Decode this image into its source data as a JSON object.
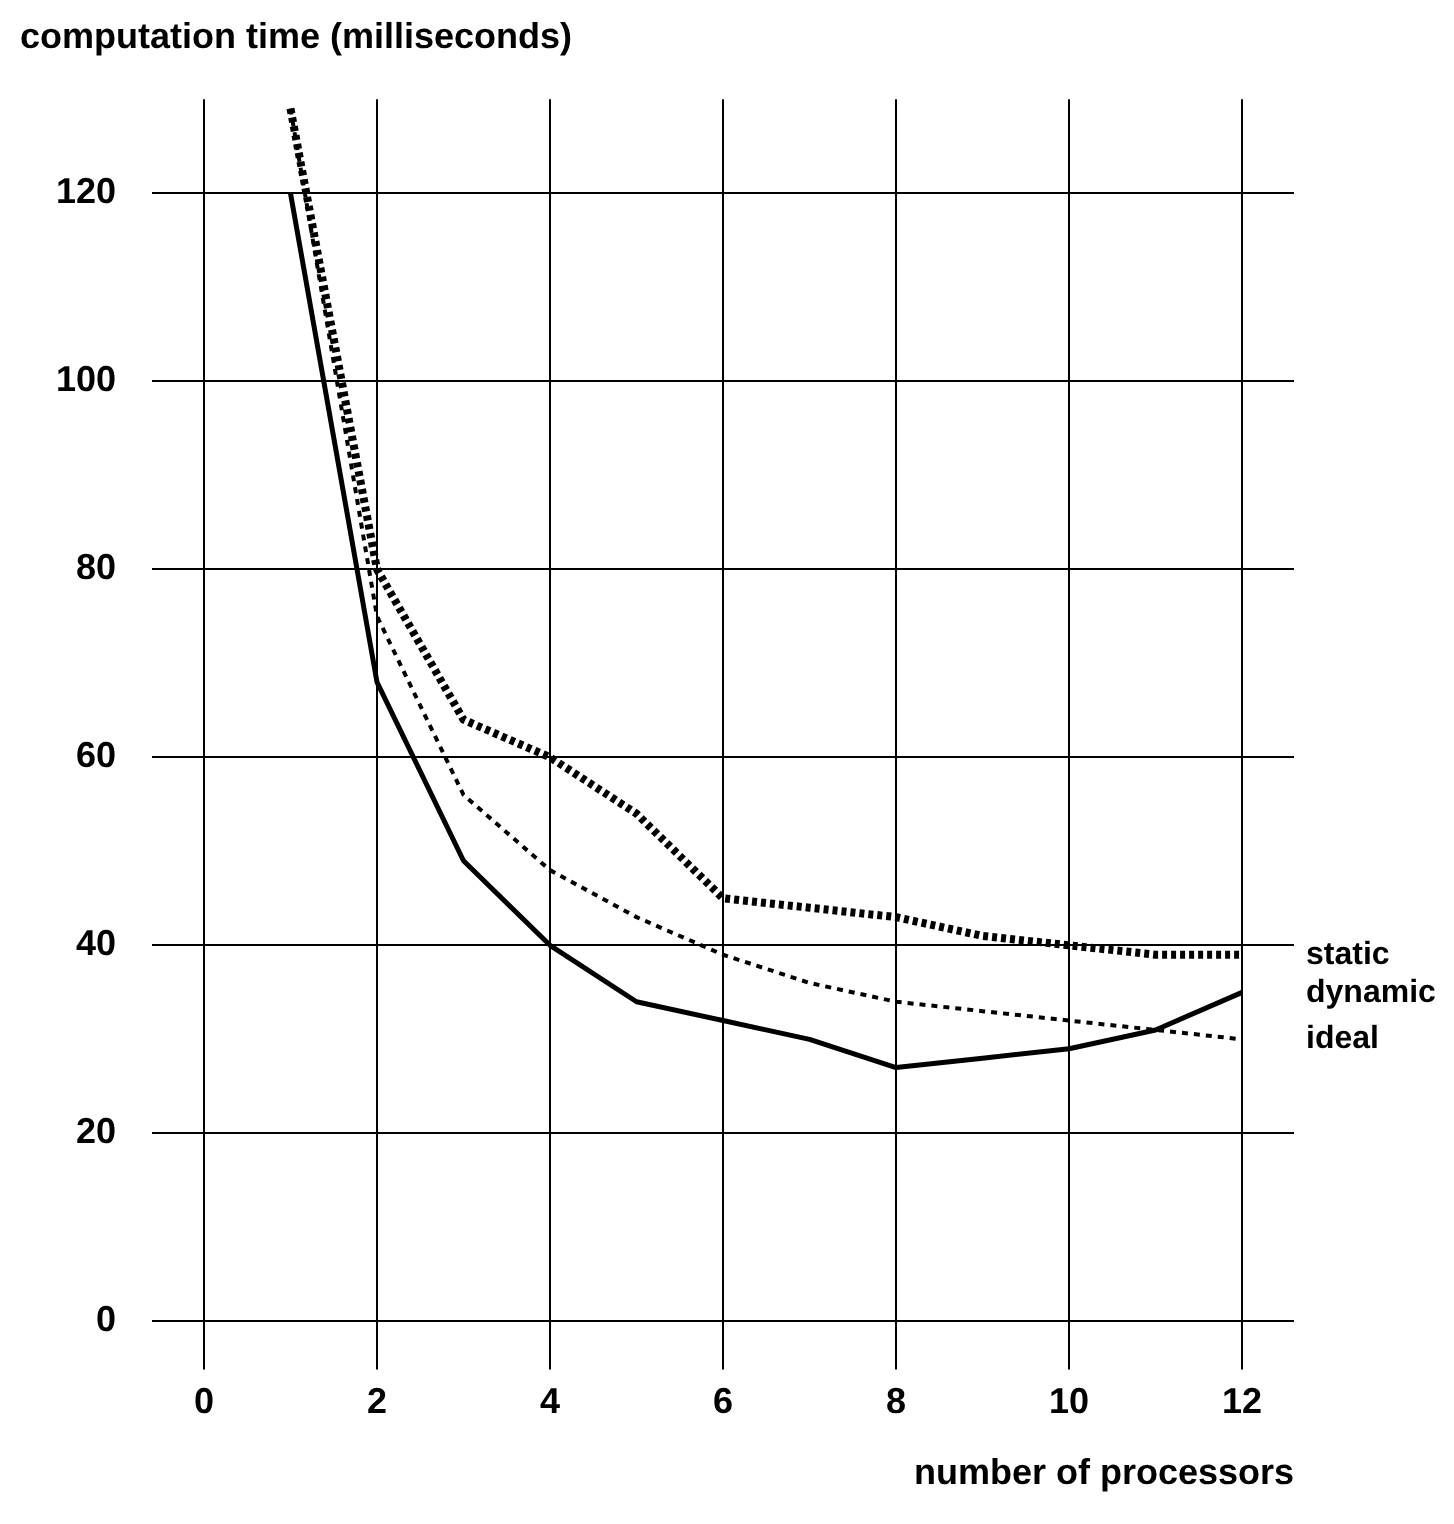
{
  "chart_data": {
    "type": "line",
    "title": "computation time (milliseconds)",
    "xlabel": "number of processors",
    "xlim": [
      -0.6,
      12.6
    ],
    "xticks": [
      0,
      2,
      4,
      6,
      8,
      10,
      12
    ],
    "ylim": [
      -3,
      130
    ],
    "yticks": [
      0,
      20,
      40,
      60,
      80,
      100,
      120
    ],
    "grid": true,
    "legend": false,
    "marker": "none",
    "x": [
      1,
      2,
      3,
      4,
      5,
      6,
      7,
      8,
      9,
      10,
      11,
      12
    ],
    "series": [
      {
        "name": "static",
        "color": "#000000",
        "line_style": "dotted",
        "values": [
          129,
          80,
          64,
          60,
          54,
          45,
          44,
          43,
          41,
          40,
          39,
          39
        ]
      },
      {
        "name": "dynamic",
        "color": "#000000",
        "line_style": "solid",
        "values": [
          120,
          68,
          49,
          40,
          34,
          32,
          30,
          27,
          28,
          29,
          31,
          35
        ]
      },
      {
        "name": "ideal",
        "color": "#000000",
        "line_style": "dashed",
        "values": [
          129,
          75,
          56,
          48,
          43,
          39,
          36,
          34,
          33,
          32,
          31,
          30
        ]
      }
    ]
  }
}
